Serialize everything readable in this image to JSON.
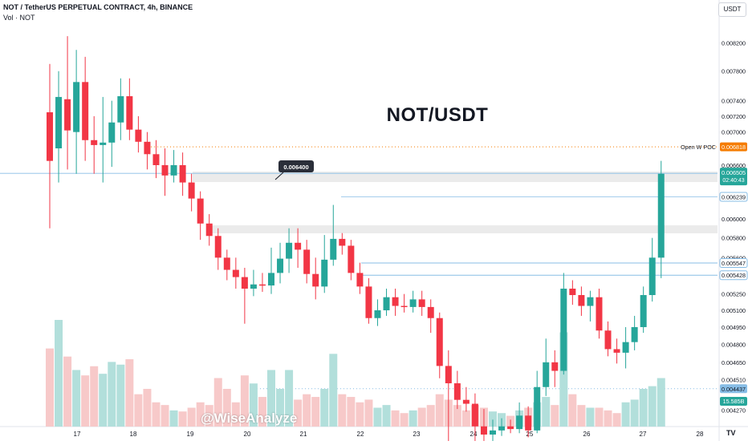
{
  "header": {
    "symbol_line": "NOT / TetherUS PERPETUAL CONTRACT, 4h, BINANCE",
    "volume_line": "Vol · NOT"
  },
  "currency_label": "USDT",
  "overlay_title": "NOT/USDT",
  "watermark": "@WiseAnalyze",
  "tv_logo_text": "TV",
  "colors": {
    "up": "#26a69a",
    "down": "#f23645",
    "vol_up": "#b2dfdb",
    "vol_down": "#f7c9c9",
    "poc_orange": "#f57c00",
    "level_blue": "#87bde6",
    "zone_gray": "#e6e6e6"
  },
  "chart_data": {
    "type": "candlestick",
    "timeframe": "4h",
    "y_scale": "log",
    "y_range": [
      0.00422,
      0.00848
    ],
    "x_tick_labels": [
      "17",
      "18",
      "19",
      "20",
      "21",
      "22",
      "23",
      "24",
      "25",
      "26",
      "27",
      "28"
    ],
    "y_tick_labels": [
      "0.008200",
      "0.007800",
      "0.007400",
      "0.007200",
      "0.007000",
      "0.006600",
      "0.006000",
      "0.005800",
      "0.005600",
      "0.005250",
      "0.005100",
      "0.004950",
      "0.004800",
      "0.004650",
      "0.004510",
      "0.004270"
    ],
    "y_tick_values": [
      0.0082,
      0.0078,
      0.0074,
      0.0072,
      0.007,
      0.0066,
      0.006,
      0.0058,
      0.0056,
      0.00525,
      0.0051,
      0.00495,
      0.0048,
      0.00465,
      0.00451,
      0.00427
    ],
    "candles": [
      [
        0.00725,
        0.00665,
        0.0079,
        0.0059,
        1.45
      ],
      [
        0.0068,
        0.00745,
        0.0078,
        0.0064,
        1.98
      ],
      [
        0.00742,
        0.00702,
        0.0083,
        0.00655,
        1.3
      ],
      [
        0.007,
        0.00765,
        0.0081,
        0.0065,
        1.05
      ],
      [
        0.00765,
        0.0069,
        0.008,
        0.00665,
        0.95
      ],
      [
        0.0069,
        0.00684,
        0.0072,
        0.0065,
        1.12
      ],
      [
        0.00684,
        0.00687,
        0.00745,
        0.0064,
        0.98
      ],
      [
        0.00687,
        0.00712,
        0.0074,
        0.00658,
        1.2
      ],
      [
        0.00712,
        0.00746,
        0.0077,
        0.0069,
        1.15
      ],
      [
        0.00746,
        0.00703,
        0.0077,
        0.0069,
        1.25
      ],
      [
        0.00703,
        0.00688,
        0.0072,
        0.00675,
        0.6
      ],
      [
        0.00688,
        0.00673,
        0.007,
        0.00655,
        0.7
      ],
      [
        0.00673,
        0.0066,
        0.0069,
        0.00645,
        0.45
      ],
      [
        0.0066,
        0.00648,
        0.0068,
        0.00625,
        0.4
      ],
      [
        0.00648,
        0.0066,
        0.00678,
        0.0064,
        0.3
      ],
      [
        0.0066,
        0.0064,
        0.00675,
        0.00625,
        0.28
      ],
      [
        0.0064,
        0.00622,
        0.0065,
        0.00608,
        0.35
      ],
      [
        0.00622,
        0.00595,
        0.0063,
        0.00578,
        0.45
      ],
      [
        0.00595,
        0.00582,
        0.00605,
        0.00572,
        0.4
      ],
      [
        0.00582,
        0.0056,
        0.0059,
        0.00548,
        0.9
      ],
      [
        0.0056,
        0.00548,
        0.00568,
        0.00538,
        0.7
      ],
      [
        0.00548,
        0.00541,
        0.0056,
        0.0053,
        0.45
      ],
      [
        0.00541,
        0.0053,
        0.0055,
        0.00498,
        0.95
      ],
      [
        0.0053,
        0.00534,
        0.00548,
        0.00523,
        0.8
      ],
      [
        0.00534,
        0.00533,
        0.00545,
        0.00527,
        0.55
      ],
      [
        0.00533,
        0.00545,
        0.0057,
        0.00525,
        1.05
      ],
      [
        0.00545,
        0.00559,
        0.00575,
        0.00535,
        0.7
      ],
      [
        0.00559,
        0.00575,
        0.0059,
        0.00545,
        1.05
      ],
      [
        0.00575,
        0.00568,
        0.0059,
        0.0055,
        0.5
      ],
      [
        0.00568,
        0.00544,
        0.00578,
        0.00535,
        0.6
      ],
      [
        0.00544,
        0.00532,
        0.0056,
        0.0052,
        0.55
      ],
      [
        0.00532,
        0.00558,
        0.00583,
        0.00526,
        0.7
      ],
      [
        0.00558,
        0.00579,
        0.00615,
        0.00552,
        1.35
      ],
      [
        0.00579,
        0.00572,
        0.00585,
        0.00563,
        0.6
      ],
      [
        0.00572,
        0.00545,
        0.00578,
        0.00538,
        0.55
      ],
      [
        0.00545,
        0.00532,
        0.00555,
        0.00525,
        0.45
      ],
      [
        0.00532,
        0.00503,
        0.0054,
        0.00498,
        0.5
      ],
      [
        0.00503,
        0.0051,
        0.0052,
        0.00496,
        0.35
      ],
      [
        0.0051,
        0.00522,
        0.0053,
        0.00505,
        0.4
      ],
      [
        0.00522,
        0.00514,
        0.0053,
        0.00505,
        0.3
      ],
      [
        0.00514,
        0.00513,
        0.00525,
        0.00508,
        0.25
      ],
      [
        0.00513,
        0.0052,
        0.00528,
        0.00508,
        0.3
      ],
      [
        0.0052,
        0.00513,
        0.00528,
        0.00505,
        0.35
      ],
      [
        0.00513,
        0.00503,
        0.0052,
        0.0049,
        0.4
      ],
      [
        0.00503,
        0.00462,
        0.00508,
        0.00452,
        0.6
      ],
      [
        0.00462,
        0.00448,
        0.00475,
        0.00404,
        0.5
      ],
      [
        0.00448,
        0.00435,
        0.00458,
        0.00428,
        0.4
      ],
      [
        0.00435,
        0.00432,
        0.00445,
        0.00426,
        0.3
      ],
      [
        0.00432,
        0.00415,
        0.0044,
        0.00403,
        0.4
      ],
      [
        0.00415,
        0.00409,
        0.00428,
        0.00397,
        0.35
      ],
      [
        0.00409,
        0.00412,
        0.0042,
        0.00404,
        0.28
      ],
      [
        0.00412,
        0.00415,
        0.00421,
        0.00408,
        0.25
      ],
      [
        0.00415,
        0.00413,
        0.0042,
        0.0041,
        0.2
      ],
      [
        0.00413,
        0.00423,
        0.00433,
        0.0041,
        0.3
      ],
      [
        0.00423,
        0.00412,
        0.0043,
        0.00407,
        0.35
      ],
      [
        0.00412,
        0.00445,
        0.00458,
        0.0041,
        0.45
      ],
      [
        0.00445,
        0.00465,
        0.00485,
        0.00438,
        0.55
      ],
      [
        0.00465,
        0.00458,
        0.00475,
        0.00445,
        0.4
      ],
      [
        0.00458,
        0.0053,
        0.00545,
        0.00455,
        1.75
      ],
      [
        0.0053,
        0.00524,
        0.00538,
        0.00515,
        0.6
      ],
      [
        0.00524,
        0.00514,
        0.00532,
        0.00505,
        0.4
      ],
      [
        0.00514,
        0.00522,
        0.00528,
        0.005,
        0.35
      ],
      [
        0.00522,
        0.00492,
        0.0053,
        0.00485,
        0.35
      ],
      [
        0.00492,
        0.00476,
        0.005,
        0.0047,
        0.3
      ],
      [
        0.00476,
        0.00473,
        0.00485,
        0.00464,
        0.25
      ],
      [
        0.00473,
        0.00482,
        0.00495,
        0.0046,
        0.45
      ],
      [
        0.00482,
        0.00495,
        0.00505,
        0.00475,
        0.5
      ],
      [
        0.00495,
        0.00524,
        0.00532,
        0.0049,
        0.7
      ],
      [
        0.00524,
        0.0056,
        0.0058,
        0.00518,
        0.75
      ],
      [
        0.0056,
        0.0065,
        0.00665,
        0.0054,
        0.9
      ]
    ],
    "levels": [
      {
        "label": "Open W POC",
        "price": 0.006818,
        "value_label": "0.006818"
      },
      {
        "price": 0.006239,
        "value_label": "0.006239"
      },
      {
        "price": 0.005547,
        "value_label": "0.005547"
      },
      {
        "price": 0.005428,
        "value_label": "0.005428"
      },
      {
        "price": 0.004437,
        "value_label": "0.004437"
      }
    ],
    "current_price": {
      "value": 0.006505,
      "label": "0.006505",
      "countdown": "02:40:43"
    },
    "volume_label": "15.585B",
    "annotation": {
      "label": "0.006400",
      "price": 0.0064
    }
  }
}
